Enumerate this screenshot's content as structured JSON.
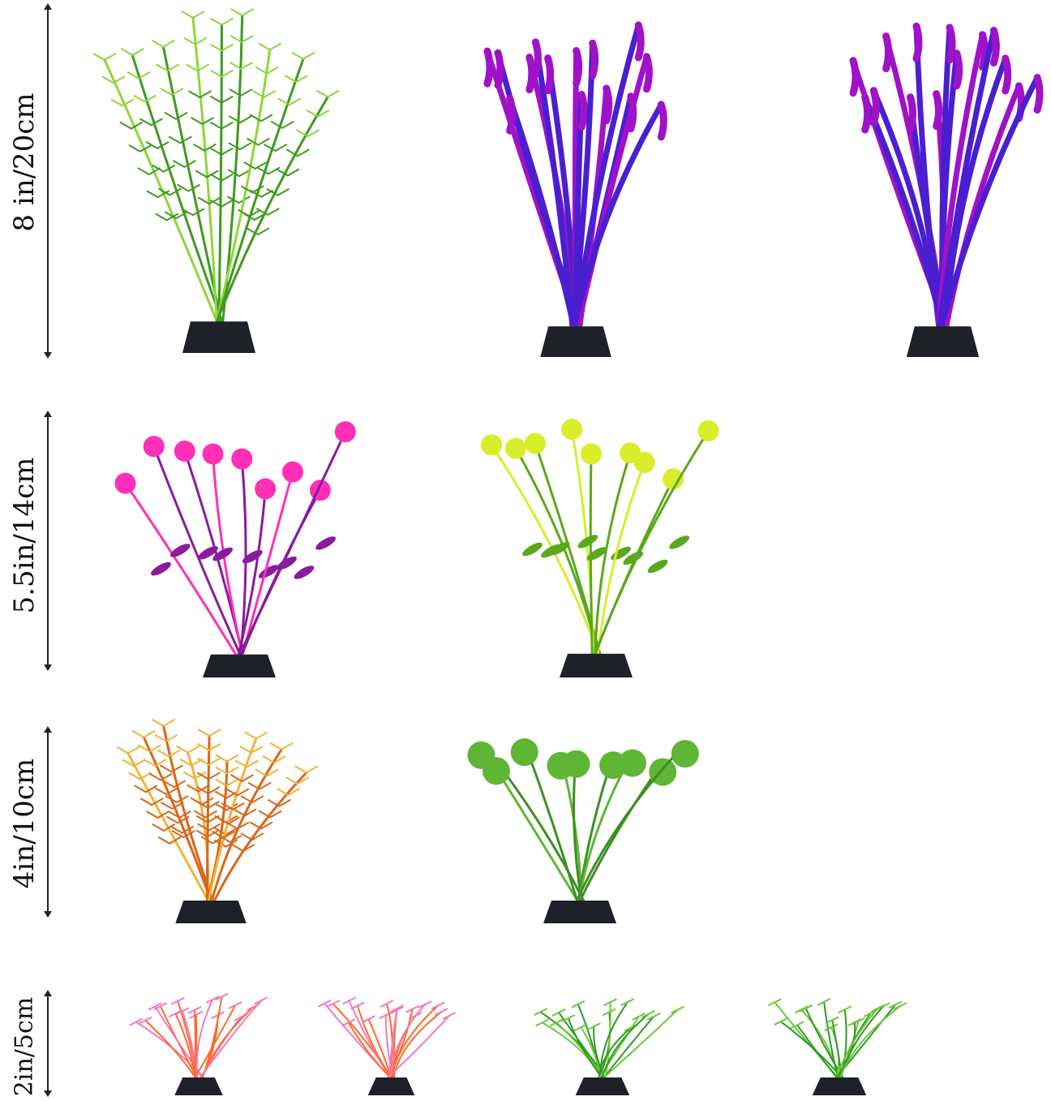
{
  "size_labels": [
    {
      "text": "8 in/20cm"
    },
    {
      "text": "5.5in/14cm"
    },
    {
      "text": "4in/10cm"
    },
    {
      "text": "2in/5cm"
    }
  ],
  "plants": [
    {
      "row": 1,
      "style": "feathery",
      "color": "#3f9a1e",
      "tip": "#8fd63a"
    },
    {
      "row": 1,
      "style": "ribbon",
      "color": "#4a1fd0",
      "tip": "#a012c8"
    },
    {
      "row": 1,
      "style": "ribbon",
      "color": "#4a1fd0",
      "tip": "#a012c8"
    },
    {
      "row": 2,
      "style": "flower",
      "color": "#8a1a9e",
      "tip": "#ff2fb8"
    },
    {
      "row": 2,
      "style": "flower",
      "color": "#5aa81c",
      "tip": "#d8ee2a"
    },
    {
      "row": 3,
      "style": "feathery",
      "color": "#d9661a",
      "tip": "#f2b23a"
    },
    {
      "row": 3,
      "style": "round-leaf",
      "color": "#3d8f22",
      "tip": "#5fb534"
    },
    {
      "row": 4,
      "style": "bush",
      "color": "#ff6a2a",
      "tip": "#f37ac0"
    },
    {
      "row": 4,
      "style": "bush",
      "color": "#ff6a2a",
      "tip": "#f37ac0"
    },
    {
      "row": 4,
      "style": "bush",
      "color": "#2f9a22",
      "tip": "#6cc83a"
    },
    {
      "row": 4,
      "style": "bush",
      "color": "#2f9a22",
      "tip": "#6cc83a"
    }
  ],
  "base_color": "#1f2128"
}
